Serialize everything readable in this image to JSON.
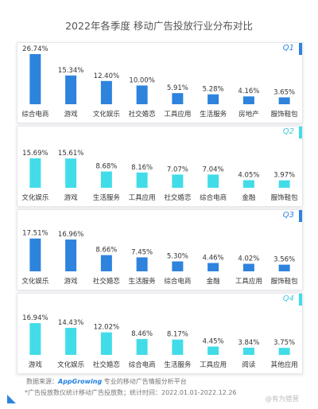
{
  "page": {
    "title": "2022年各季度 移动广告投放行业分布对比",
    "source_label": "数据来源：",
    "source_brand": "AppGrowing",
    "source_desc": "专业的移动广告情报分析平台",
    "note": "*广告投放数仪统计移动广告投放数；统计时间：2022.01.01-2022.12.26",
    "watermark": "@有为猎营"
  },
  "colors": {
    "dark_blue": "#2e83dd",
    "cyan": "#42dce8",
    "q_text_dark": "#2e83dd",
    "q_text_light": "#42c8dd"
  },
  "chart_data": [
    {
      "type": "bar",
      "title": "Q1",
      "categories": [
        "综合电商",
        "游戏",
        "文化娱乐",
        "社交婚恋",
        "工具应用",
        "生活服务",
        "房地产",
        "服饰鞋包"
      ],
      "values": [
        26.74,
        15.34,
        12.4,
        10.0,
        5.91,
        5.28,
        4.16,
        3.65
      ],
      "labels": [
        "26.74%",
        "15.34%",
        "12.40%",
        "10.00%",
        "5.91%",
        "5.28%",
        "4.16%",
        "3.65%"
      ],
      "color": "#2e83dd",
      "ylim": [
        0,
        28
      ]
    },
    {
      "type": "bar",
      "title": "Q2",
      "categories": [
        "文化娱乐",
        "游戏",
        "生活服务",
        "工具应用",
        "社交婚恋",
        "综合电商",
        "金融",
        "服饰鞋包"
      ],
      "values": [
        15.69,
        15.61,
        8.68,
        8.16,
        7.07,
        7.04,
        4.05,
        3.97
      ],
      "labels": [
        "15.69%",
        "15.61%",
        "8.68%",
        "8.16%",
        "7.07%",
        "7.04%",
        "4.05%",
        "3.97%"
      ],
      "color": "#42dce8",
      "ylim": [
        0,
        28
      ]
    },
    {
      "type": "bar",
      "title": "Q3",
      "categories": [
        "文化娱乐",
        "游戏",
        "社交婚恋",
        "生活服务",
        "综合电商",
        "金融",
        "工具应用",
        "服饰鞋包"
      ],
      "values": [
        17.51,
        16.96,
        8.66,
        7.45,
        5.3,
        4.46,
        4.02,
        3.56
      ],
      "labels": [
        "17.51%",
        "16.96%",
        "8.66%",
        "7.45%",
        "5.30%",
        "4.46%",
        "4.02%",
        "3.56%"
      ],
      "color": "#2e83dd",
      "ylim": [
        0,
        28
      ]
    },
    {
      "type": "bar",
      "title": "Q4",
      "categories": [
        "游戏",
        "文化娱乐",
        "社交婚恋",
        "综合电商",
        "生活服务",
        "工具应用",
        "阅读",
        "其他应用"
      ],
      "values": [
        16.94,
        14.43,
        12.02,
        8.46,
        8.17,
        4.45,
        3.84,
        3.75
      ],
      "labels": [
        "16.94%",
        "14.43%",
        "12.02%",
        "8.46%",
        "8.17%",
        "4.45%",
        "3.84%",
        "3.75%"
      ],
      "color": "#42dce8",
      "ylim": [
        0,
        28
      ]
    }
  ]
}
